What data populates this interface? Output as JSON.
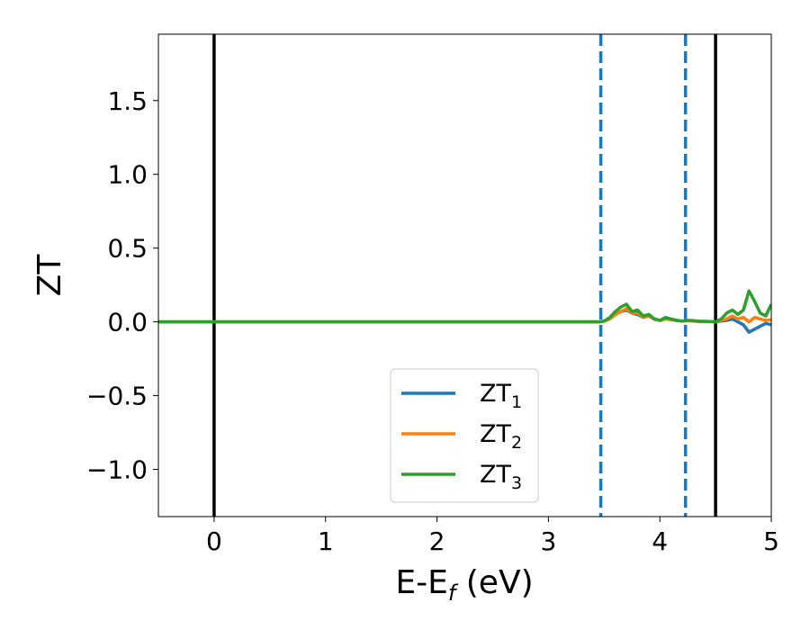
{
  "chart_data": {
    "type": "line",
    "xlabel": {
      "main": "E-E",
      "sub": "f",
      "unit": " (eV)"
    },
    "ylabel": "ZT",
    "xlim": [
      -0.5,
      5.0
    ],
    "ylim": [
      -1.32,
      1.95
    ],
    "xticks": [
      {
        "value": 0,
        "label": "0"
      },
      {
        "value": 1,
        "label": "1"
      },
      {
        "value": 2,
        "label": "2"
      },
      {
        "value": 3,
        "label": "3"
      },
      {
        "value": 4,
        "label": "4"
      },
      {
        "value": 5,
        "label": "5"
      }
    ],
    "yticks": [
      {
        "value": -1.0,
        "label": "−1.0"
      },
      {
        "value": -0.5,
        "label": "−0.5"
      },
      {
        "value": 0.0,
        "label": "0.0"
      },
      {
        "value": 0.5,
        "label": "0.5"
      },
      {
        "value": 1.0,
        "label": "1.0"
      },
      {
        "value": 1.5,
        "label": "1.5"
      }
    ],
    "grid": false,
    "legend_position": "lower-center",
    "vlines": [
      {
        "x": 0.0,
        "style": "solid",
        "color": "#000000"
      },
      {
        "x": 4.5,
        "style": "solid",
        "color": "#000000"
      },
      {
        "x": 3.47,
        "style": "dashed",
        "color": "#1f77b4"
      },
      {
        "x": 4.23,
        "style": "dashed",
        "color": "#1f77b4"
      }
    ],
    "series": [
      {
        "name": "ZT",
        "sub": "1",
        "color": "#1f77b4",
        "x": [
          -0.5,
          3.4,
          3.45,
          3.5,
          3.55,
          3.6,
          3.65,
          3.7,
          3.75,
          3.8,
          3.85,
          3.9,
          3.95,
          4.0,
          4.05,
          4.1,
          4.15,
          4.2,
          4.25,
          4.3,
          4.35,
          4.4,
          4.45,
          4.5,
          4.55,
          4.6,
          4.65,
          4.7,
          4.75,
          4.8,
          4.85,
          4.9,
          4.95,
          5.0
        ],
        "y": [
          0.0,
          0.0,
          0.0,
          0.005,
          0.02,
          0.05,
          0.07,
          0.08,
          0.06,
          0.05,
          0.03,
          0.04,
          0.02,
          0.01,
          0.02,
          0.015,
          0.01,
          0.005,
          0.008,
          0.005,
          0.004,
          0.003,
          0.002,
          0.0,
          0.005,
          0.01,
          0.02,
          0.0,
          -0.02,
          -0.07,
          -0.05,
          -0.03,
          -0.01,
          -0.02
        ]
      },
      {
        "name": "ZT",
        "sub": "2",
        "color": "#ff7f0e",
        "x": [
          -0.5,
          3.4,
          3.45,
          3.5,
          3.55,
          3.6,
          3.65,
          3.7,
          3.75,
          3.8,
          3.85,
          3.9,
          3.95,
          4.0,
          4.05,
          4.1,
          4.15,
          4.2,
          4.25,
          4.3,
          4.35,
          4.4,
          4.45,
          4.5,
          4.55,
          4.6,
          4.65,
          4.7,
          4.75,
          4.8,
          4.85,
          4.9,
          4.95,
          5.0
        ],
        "y": [
          0.0,
          0.0,
          0.0,
          0.005,
          0.02,
          0.05,
          0.07,
          0.09,
          0.06,
          0.06,
          0.03,
          0.04,
          0.02,
          0.01,
          0.02,
          0.015,
          0.01,
          0.005,
          0.008,
          0.005,
          0.004,
          0.003,
          0.002,
          0.0,
          0.01,
          0.02,
          0.04,
          0.02,
          0.03,
          0.0,
          0.03,
          0.02,
          0.01,
          0.015
        ]
      },
      {
        "name": "ZT",
        "sub": "3",
        "color": "#2ca02c",
        "x": [
          -0.5,
          3.4,
          3.45,
          3.5,
          3.55,
          3.6,
          3.65,
          3.7,
          3.75,
          3.8,
          3.85,
          3.9,
          3.95,
          4.0,
          4.05,
          4.1,
          4.15,
          4.2,
          4.25,
          4.3,
          4.35,
          4.4,
          4.45,
          4.5,
          4.55,
          4.6,
          4.65,
          4.7,
          4.75,
          4.8,
          4.85,
          4.9,
          4.95,
          5.0
        ],
        "y": [
          0.0,
          0.0,
          0.0,
          0.005,
          0.03,
          0.07,
          0.1,
          0.12,
          0.07,
          0.08,
          0.04,
          0.05,
          0.02,
          0.01,
          0.03,
          0.02,
          0.01,
          0.005,
          0.01,
          0.008,
          0.004,
          0.003,
          0.002,
          0.0,
          0.02,
          0.06,
          0.08,
          0.05,
          0.08,
          0.21,
          0.14,
          0.06,
          0.04,
          0.12
        ]
      }
    ]
  }
}
